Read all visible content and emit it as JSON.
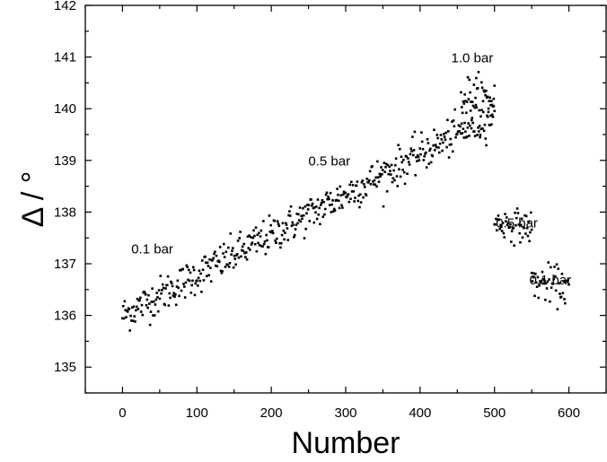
{
  "chart_data": {
    "type": "scatter",
    "title": "",
    "xlabel": "Number",
    "ylabel": "Δ / °",
    "xlim": [
      -50,
      650
    ],
    "ylim": [
      134.5,
      142
    ],
    "x_ticks": [
      0,
      100,
      200,
      300,
      400,
      500,
      600
    ],
    "y_ticks": [
      135,
      136,
      137,
      138,
      139,
      140,
      141,
      142
    ],
    "grid": false,
    "legend": "none",
    "marker_color": "#000000",
    "annotations": [
      {
        "text": "0.1 bar",
        "x": 40,
        "y": 137.2
      },
      {
        "text": "0.5 bar",
        "x": 278,
        "y": 138.9
      },
      {
        "text": "1.0 bar",
        "x": 470,
        "y": 140.9
      },
      {
        "text": "0.5 bar",
        "x": 530,
        "y": 137.7
      },
      {
        "text": "0.1 bar",
        "x": 575,
        "y": 136.6
      }
    ],
    "series": [
      {
        "segments": [
          {
            "x_start": 0,
            "x_end": 500,
            "y_start": 136.0,
            "y_end": 139.9,
            "count": 500,
            "spread": 0.18
          },
          {
            "x_start": 455,
            "x_end": 500,
            "y_start": 140.25,
            "y_end": 140.15,
            "count": 45,
            "spread": 0.22
          },
          {
            "x_start": 500,
            "x_end": 550,
            "y_start": 137.8,
            "y_end": 137.7,
            "count": 50,
            "spread": 0.15
          },
          {
            "x_start": 550,
            "x_end": 600,
            "y_start": 136.65,
            "y_end": 136.55,
            "count": 50,
            "spread": 0.18
          }
        ]
      }
    ]
  }
}
